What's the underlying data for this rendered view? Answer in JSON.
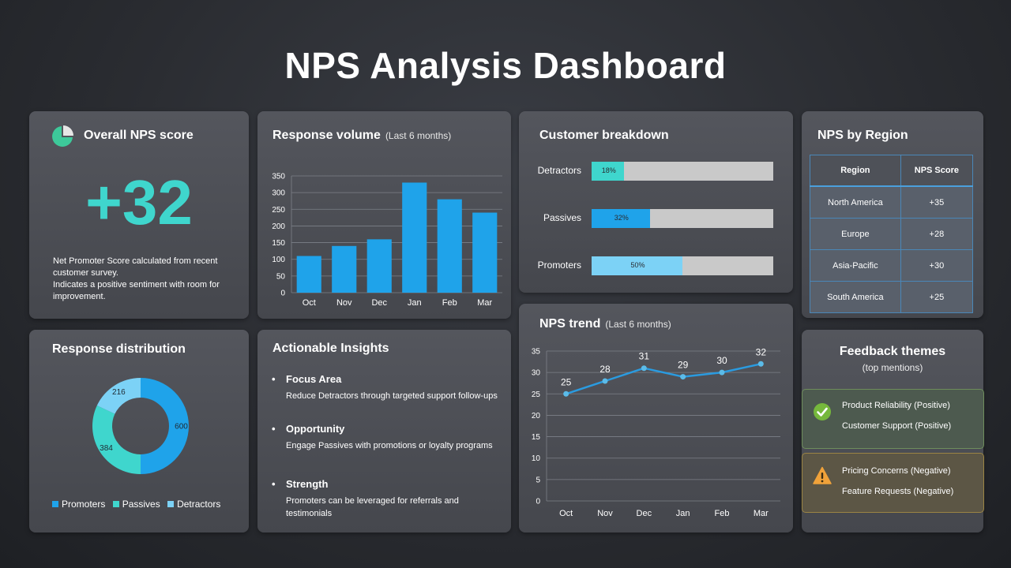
{
  "page": {
    "title": "NPS Analysis Dashboard"
  },
  "overall": {
    "title": "Overall NPS score",
    "value": "+32",
    "desc_line1": "Net Promoter Score calculated from recent customer survey.",
    "desc_line2": "Indicates a positive sentiment with room for improvement.",
    "accent": "#3fd6cd"
  },
  "volume": {
    "title": "Response volume",
    "subtitle": "(Last 6 months)"
  },
  "breakdown": {
    "title": "Customer breakdown",
    "rows": [
      {
        "label": "Detractors",
        "pct": 18,
        "pct_label": "18%",
        "color": "#3fd6cd"
      },
      {
        "label": "Passives",
        "pct": 32,
        "pct_label": "32%",
        "color": "#1fa3ea"
      },
      {
        "label": "Promoters",
        "pct": 50,
        "pct_label": "50%",
        "color": "#7cd2f6"
      }
    ]
  },
  "region": {
    "title": "NPS by Region",
    "headers": [
      "Region",
      "NPS Score"
    ],
    "rows": [
      {
        "region": "North America",
        "score": "+35"
      },
      {
        "region": "Europe",
        "score": "+28"
      },
      {
        "region": "Asia-Pacific",
        "score": "+30"
      },
      {
        "region": "South America",
        "score": "+25"
      }
    ]
  },
  "distribution": {
    "title": "Response distribution",
    "legend": [
      {
        "label": "Promoters",
        "color": "#1fa3ea"
      },
      {
        "label": "Passives",
        "color": "#3fd6cd"
      },
      {
        "label": "Detractors",
        "color": "#7cd2f6"
      }
    ]
  },
  "insights": {
    "title": "Actionable Insights",
    "items": [
      {
        "head": "Focus Area",
        "text": "Reduce Detractors through targeted support follow-ups"
      },
      {
        "head": "Opportunity",
        "text": "Engage Passives with promotions or loyalty programs"
      },
      {
        "head": "Strength",
        "text": "Promoters can be leveraged for referrals and testimonials"
      }
    ]
  },
  "trend": {
    "title": "NPS trend",
    "subtitle": "(Last 6 months)"
  },
  "feedback": {
    "title": "Feedback themes",
    "subtitle": "(top mentions)",
    "positive": [
      "Product Reliability (Positive)",
      "Customer Support (Positive)"
    ],
    "negative": [
      "Pricing Concerns (Negative)",
      "Feature Requests (Negative)"
    ],
    "positive_icon": "check-circle-icon",
    "negative_icon": "warning-triangle-icon"
  },
  "chart_data": [
    {
      "type": "bar",
      "title": "Response volume",
      "categories": [
        "Oct",
        "Nov",
        "Dec",
        "Jan",
        "Feb",
        "Mar"
      ],
      "values": [
        110,
        140,
        160,
        330,
        280,
        240
      ],
      "ylim": [
        0,
        350
      ],
      "yticks": [
        0,
        50,
        100,
        150,
        200,
        250,
        300,
        350
      ],
      "grid": true,
      "color": "#1fa3ea"
    },
    {
      "type": "pie",
      "title": "Response distribution",
      "labels": [
        "Promoters",
        "Passives",
        "Detractors"
      ],
      "values": [
        600,
        384,
        216
      ],
      "colors": [
        "#1fa3ea",
        "#3fd6cd",
        "#7cd2f6"
      ],
      "donut": true
    },
    {
      "type": "line",
      "title": "NPS trend",
      "categories": [
        "Oct",
        "Nov",
        "Dec",
        "Jan",
        "Feb",
        "Mar"
      ],
      "values": [
        25,
        28,
        31,
        29,
        30,
        32
      ],
      "data_labels": [
        25,
        28,
        31,
        29,
        30,
        32
      ],
      "ylim": [
        0,
        35
      ],
      "yticks": [
        0,
        5,
        10,
        15,
        20,
        25,
        30,
        35
      ],
      "grid": true,
      "color": "#2a9be0"
    }
  ]
}
